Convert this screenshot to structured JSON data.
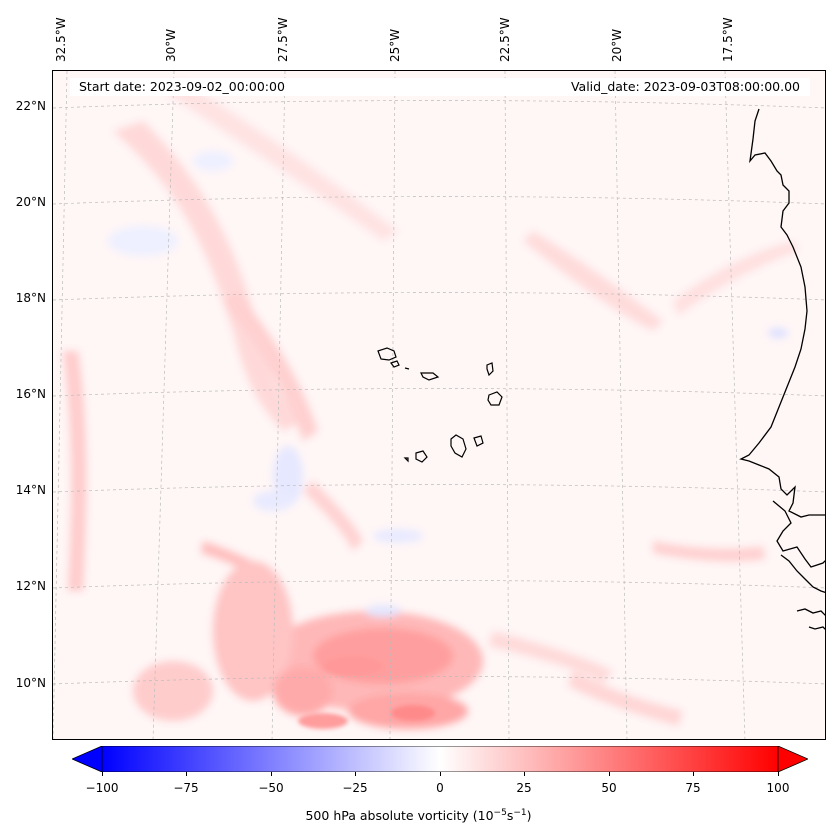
{
  "header": {
    "start_date": "Start date: 2023-09-02_00:00:00",
    "valid_date": "Valid_date: 2023-09-03T08:00:00.00"
  },
  "map": {
    "longitude_labels": [
      "32.5°W",
      "30°W",
      "27.5°W",
      "25°W",
      "22.5°W",
      "20°W",
      "17.5°W"
    ],
    "latitude_labels": [
      "22°N",
      "20°N",
      "18°N",
      "16°N",
      "14°N",
      "12°N",
      "10°N"
    ],
    "field": "500 hPa absolute vorticity",
    "colormap": "bwr",
    "colors": {
      "background": "#fff6f6",
      "land_outline": "#000000",
      "gridline": "#bbbbbb"
    }
  },
  "colorbar": {
    "min": -100,
    "max": 100,
    "tick_labels": [
      "−100",
      "−75",
      "−50",
      "−25",
      "0",
      "25",
      "50",
      "75",
      "100"
    ],
    "label_prefix": "500 hPa absolute vorticity (10",
    "label_exp1": "−5",
    "label_mid": "s",
    "label_exp2": "−1",
    "label_suffix": ")"
  }
}
